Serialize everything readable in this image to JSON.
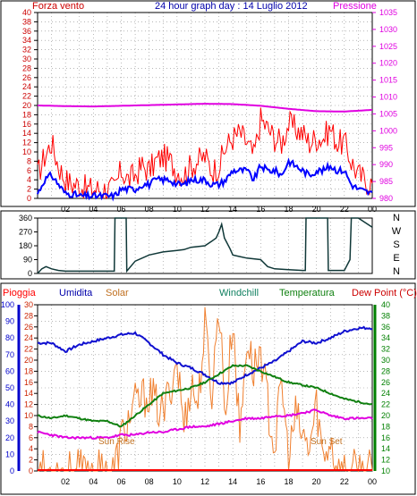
{
  "header": {
    "left_label": "Forza vento",
    "title": "24 hour graph day : 14 Luglio 2012",
    "right_label": "Pressione"
  },
  "bottom_header": {
    "pioggia": "Pioggia",
    "umidita": "Umidita",
    "solar": "Solar",
    "windchill": "Windchill",
    "temperatura": "Temperatura",
    "dewpoint": "Dew Point (°C)"
  },
  "annotations": {
    "sunrise": "Sun Rise",
    "sunset": "Sun Set"
  },
  "colors": {
    "wind": "#ff0000",
    "wind_avg": "#0000ff",
    "pressure": "#e000e0",
    "direction": "#103838",
    "humidity": "#1010d0",
    "solar": "#f08030",
    "temperature": "#108010",
    "dewpoint": "#e000e0",
    "rain": "#ff0000",
    "left_axis_wind": "#cc0000",
    "left_axis_rain": "#0000cc",
    "axis_30": "#cc2200",
    "right_axis": "#008000",
    "grid": "#8c8c8c"
  },
  "chart_data": [
    {
      "type": "line",
      "name": "wind-pressure",
      "x_ticks": [
        "02",
        "04",
        "06",
        "08",
        "10",
        "12",
        "14",
        "16",
        "18",
        "20",
        "22",
        "00"
      ],
      "y_left_ticks": [
        "0",
        "2",
        "4",
        "6",
        "8",
        "10",
        "12",
        "14",
        "16",
        "18",
        "20",
        "22",
        "24",
        "26",
        "28",
        "30",
        "32",
        "34",
        "36",
        "38",
        "40"
      ],
      "y_left_lim": [
        0,
        40
      ],
      "y_right_ticks": [
        "980",
        "985",
        "990",
        "995",
        "1000",
        "1005",
        "1010",
        "1015",
        "1020",
        "1025",
        "1030",
        "1035"
      ],
      "y_right_lim": [
        980,
        1035
      ],
      "series": [
        {
          "key": "wind_max",
          "x": [
            0,
            0.5,
            1,
            1.5,
            2,
            2.5,
            3,
            3.5,
            4,
            4.5,
            5,
            5.5,
            6,
            6.5,
            7,
            7.5,
            8,
            8.5,
            9,
            9.5,
            10,
            10.5,
            11,
            11.5,
            12,
            12.5,
            13,
            13.5,
            14,
            14.5,
            15,
            15.5,
            16,
            16.5,
            17,
            17.5,
            18,
            18.5,
            19,
            19.5,
            20,
            20.5,
            21,
            21.5,
            22,
            22.5,
            23,
            23.5,
            24
          ],
          "y": [
            5,
            9,
            12,
            7,
            4,
            3,
            3,
            2,
            2,
            2,
            2,
            2,
            6,
            4,
            5,
            7,
            6,
            8,
            9,
            8,
            6,
            5,
            7,
            8,
            9,
            6,
            7,
            11,
            13,
            14,
            12,
            9,
            17,
            15,
            13,
            12,
            16,
            15,
            14,
            12,
            13,
            13,
            15,
            12,
            12,
            8,
            5,
            4,
            3
          ]
        },
        {
          "key": "wind_avg",
          "x": [
            0,
            0.5,
            1,
            1.5,
            2,
            2.5,
            3,
            3.5,
            4,
            4.5,
            5,
            5.5,
            6,
            6.5,
            7,
            7.5,
            8,
            8.5,
            9,
            9.5,
            10,
            10.5,
            11,
            11.5,
            12,
            12.5,
            13,
            13.5,
            14,
            14.5,
            15,
            15.5,
            16,
            16.5,
            17,
            17.5,
            18,
            18.5,
            19,
            19.5,
            20,
            20.5,
            21,
            21.5,
            22,
            22.5,
            23,
            23.5,
            24
          ],
          "y": [
            1,
            4,
            5,
            3,
            1,
            1,
            0.5,
            0.5,
            0.5,
            0.5,
            0.5,
            0.5,
            2,
            2,
            2,
            3,
            3,
            4,
            4,
            4,
            3,
            3,
            4,
            4,
            4,
            3,
            3,
            4,
            6,
            6,
            6,
            4,
            7,
            6,
            6,
            5,
            8,
            7,
            6,
            5,
            6,
            6,
            7,
            6,
            6,
            3,
            2,
            1.5,
            1
          ]
        },
        {
          "key": "pressure",
          "x": [
            0,
            2,
            4,
            6,
            8,
            10,
            12,
            14,
            16,
            18,
            20,
            22,
            24
          ],
          "y": [
            1007.5,
            1007.3,
            1007.2,
            1007.4,
            1007.6,
            1007.8,
            1008,
            1007.9,
            1007.4,
            1006.5,
            1005.8,
            1005.7,
            1006.2
          ]
        }
      ]
    },
    {
      "type": "line",
      "name": "wind-direction",
      "x_ticks": [
        "02",
        "04",
        "06",
        "08",
        "10",
        "12",
        "14",
        "16",
        "18",
        "20",
        "22",
        "00"
      ],
      "y_left_ticks": [
        "0",
        "90",
        "180",
        "270",
        "360"
      ],
      "y_left_lim": [
        0,
        360
      ],
      "y_right_ticks": [
        "N",
        "E",
        "S",
        "W",
        "N"
      ],
      "series": [
        {
          "key": "direction",
          "x": [
            0,
            0.3,
            0.6,
            1,
            1.5,
            2,
            3,
            4,
            5,
            5.5,
            5.55,
            5.6,
            6,
            6.35,
            6.4,
            7,
            8,
            9,
            10,
            10.5,
            11,
            12,
            12.5,
            12.8,
            13,
            13.2,
            13.4,
            13.8,
            14,
            14.5,
            15,
            16,
            16.5,
            17,
            18,
            19,
            19.2,
            19.25,
            20,
            20.8,
            20.85,
            21,
            22,
            22.4,
            22.5,
            23,
            24
          ],
          "y": [
            0,
            30,
            45,
            30,
            20,
            15,
            15,
            15,
            15,
            15,
            360,
            360,
            360,
            360,
            15,
            80,
            120,
            140,
            150,
            155,
            170,
            180,
            210,
            230,
            270,
            320,
            230,
            160,
            120,
            110,
            100,
            90,
            45,
            30,
            25,
            20,
            20,
            360,
            360,
            360,
            20,
            20,
            20,
            90,
            360,
            360,
            300
          ]
        }
      ]
    },
    {
      "type": "line",
      "name": "humidity-temperature",
      "x_ticks": [
        "02",
        "04",
        "06",
        "08",
        "10",
        "12",
        "14",
        "16",
        "18",
        "20",
        "22",
        "00"
      ],
      "y_left_ticks": [
        "0",
        "10",
        "20",
        "30",
        "40",
        "50",
        "60",
        "70",
        "80",
        "90",
        "100"
      ],
      "y_left_lim": [
        0,
        100
      ],
      "y_mid_ticks": [
        "0",
        "2",
        "4",
        "6",
        "8",
        "10",
        "12",
        "14",
        "16",
        "18",
        "20",
        "22",
        "24",
        "26",
        "28",
        "30"
      ],
      "y_mid_lim": [
        0,
        30
      ],
      "y_right_ticks": [
        "10",
        "12",
        "14",
        "16",
        "18",
        "20",
        "22",
        "24",
        "26",
        "28",
        "30",
        "32",
        "34",
        "36",
        "38",
        "40"
      ],
      "y_right_lim": [
        10,
        40
      ],
      "series": [
        {
          "key": "humidity",
          "x": [
            0,
            1,
            2,
            3,
            4,
            5,
            6,
            7,
            8,
            9,
            10,
            11,
            12,
            13,
            14,
            15,
            16,
            17,
            18,
            19,
            20,
            21,
            22,
            23,
            24
          ],
          "y": [
            77,
            77,
            72,
            76,
            78,
            80,
            82,
            83,
            77,
            70,
            65,
            62,
            58,
            53,
            53,
            58,
            62,
            66,
            72,
            78,
            77,
            80,
            84,
            86,
            86
          ]
        },
        {
          "key": "solar",
          "x": [
            0,
            5.5,
            6,
            7,
            8,
            9,
            10,
            10.5,
            11,
            11.5,
            12,
            12.5,
            13,
            13.5,
            14,
            14.5,
            15,
            15.5,
            16,
            16.5,
            17,
            17.5,
            18,
            18.5,
            19,
            19.5,
            20,
            20.5,
            21,
            21.5,
            24
          ],
          "y": [
            0,
            0,
            6,
            12,
            14,
            10,
            20,
            8,
            16,
            12,
            26,
            14,
            30,
            10,
            28,
            6,
            24,
            18,
            22,
            12,
            4,
            16,
            2,
            10,
            6,
            4,
            12,
            2,
            6,
            0,
            0
          ]
        },
        {
          "key": "temperature",
          "x": [
            0,
            1,
            2,
            3,
            4,
            5,
            6,
            7,
            8,
            9,
            10,
            11,
            12,
            13,
            14,
            15,
            16,
            17,
            18,
            19,
            20,
            21,
            22,
            23,
            24
          ],
          "y": [
            20,
            19.5,
            20,
            19.5,
            19,
            19,
            18,
            20,
            22,
            24,
            24.5,
            25,
            26,
            27.5,
            29,
            29,
            28,
            27,
            26,
            25.5,
            25,
            24,
            23,
            22.5,
            22
          ]
        },
        {
          "key": "dewpoint",
          "x": [
            0,
            1,
            2,
            3,
            4,
            5,
            6,
            7,
            8,
            9,
            10,
            11,
            12,
            13,
            14,
            15,
            16,
            17,
            18,
            19,
            20,
            21,
            22,
            23,
            24
          ],
          "y": [
            17,
            16.5,
            16,
            16,
            16,
            16,
            16.5,
            16.5,
            17,
            17,
            17.5,
            18,
            18,
            18.5,
            19,
            19.5,
            19.5,
            20,
            20,
            20.5,
            21,
            20,
            19.5,
            19.5,
            19.5
          ]
        },
        {
          "key": "rain",
          "x": [
            0,
            24
          ],
          "y": [
            0,
            0
          ]
        }
      ]
    }
  ]
}
